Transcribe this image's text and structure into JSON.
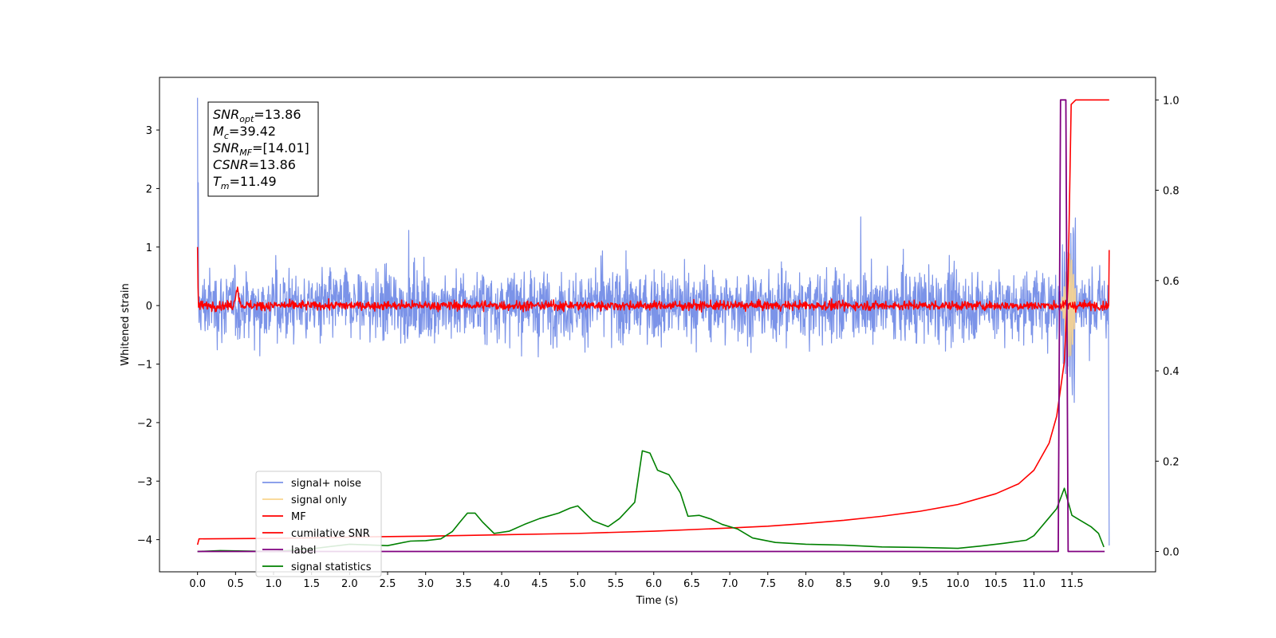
{
  "chart_data": {
    "type": "line",
    "xlabel": "Time (s)",
    "ylabel": "Whitened strain",
    "xlim": [
      -0.5,
      12.6
    ],
    "ylim": [
      -4.55,
      3.9
    ],
    "y2lim": [
      -0.045,
      1.05
    ],
    "xticks": [
      "0.0",
      "0.5",
      "1.0",
      "1.5",
      "2.0",
      "2.5",
      "3.0",
      "3.5",
      "4.0",
      "4.5",
      "5.0",
      "5.5",
      "6.0",
      "6.5",
      "7.0",
      "7.5",
      "8.0",
      "8.5",
      "9.0",
      "9.5",
      "10.0",
      "10.5",
      "11.0",
      "11.5"
    ],
    "yticks": [
      "3",
      "2",
      "1",
      "0",
      "−1",
      "−2",
      "−3",
      "−4"
    ],
    "y2ticks": [
      "1.0",
      "0.8",
      "0.6",
      "0.4",
      "0.2",
      "0.0"
    ],
    "annotation": {
      "lines": [
        {
          "name": "SNR",
          "sub": "opt",
          "value": "=13.86"
        },
        {
          "name": "M",
          "sub": "c",
          "value": "=39.42"
        },
        {
          "name": "SNR",
          "sub": "MF",
          "value": "=[14.01]"
        },
        {
          "name": "CSNR",
          "sub": "",
          "value": "=13.86"
        },
        {
          "name": "T",
          "sub": "m",
          "value": "=11.49"
        }
      ]
    },
    "legend": {
      "placement": "lower-left",
      "entries": [
        {
          "label": "signal+ noise",
          "color": "#7b93e8"
        },
        {
          "label": "signal only",
          "color": "#f9d58e"
        },
        {
          "label": "MF",
          "color": "#ff0000"
        },
        {
          "label": "cumilative SNR",
          "color": "#ff0000"
        },
        {
          "label": "label",
          "color": "#800080"
        },
        {
          "label": "signal statistics",
          "color": "#008000"
        }
      ]
    },
    "series": [
      {
        "name": "signal+ noise",
        "axis": "left",
        "color": "#7b93e8",
        "noise_amplitude": 1.0,
        "x_range": [
          0.0,
          11.99
        ]
      },
      {
        "name": "signal only",
        "axis": "left",
        "color": "#f9d58e",
        "x_range": [
          11.2,
          11.55
        ],
        "peak": 0.9
      },
      {
        "name": "MF",
        "axis": "left",
        "color": "#ff0000",
        "noise_amplitude": 0.15,
        "x_range": [
          0.0,
          11.99
        ]
      },
      {
        "name": "cumilative SNR",
        "axis": "right",
        "x": [
          0.0,
          0.02,
          1.0,
          2.0,
          3.0,
          4.0,
          5.0,
          6.0,
          7.0,
          7.5,
          8.0,
          8.5,
          9.0,
          9.5,
          10.0,
          10.5,
          10.8,
          11.0,
          11.2,
          11.3,
          11.4,
          11.45,
          11.49,
          11.55,
          11.99
        ],
        "y": [
          0.015,
          0.028,
          0.029,
          0.032,
          0.034,
          0.037,
          0.04,
          0.045,
          0.052,
          0.056,
          0.062,
          0.069,
          0.078,
          0.089,
          0.104,
          0.128,
          0.15,
          0.18,
          0.24,
          0.3,
          0.42,
          0.6,
          0.99,
          1.0,
          1.0
        ]
      },
      {
        "name": "label",
        "axis": "right",
        "color": "#800080",
        "x": [
          0.0,
          11.32,
          11.35,
          11.42,
          11.45,
          11.93
        ],
        "y": [
          0.0,
          0.0,
          1.0,
          1.0,
          0.0,
          0.0
        ]
      },
      {
        "name": "signal statistics",
        "axis": "right",
        "color": "#008000",
        "x": [
          0.0,
          0.3,
          1.0,
          1.5,
          2.0,
          2.5,
          2.8,
          3.0,
          3.2,
          3.35,
          3.45,
          3.55,
          3.65,
          3.75,
          3.9,
          4.1,
          4.3,
          4.5,
          4.75,
          4.9,
          5.0,
          5.2,
          5.4,
          5.55,
          5.75,
          5.85,
          5.95,
          6.05,
          6.2,
          6.35,
          6.45,
          6.6,
          6.75,
          6.9,
          7.1,
          7.3,
          7.6,
          8.0,
          8.5,
          9.0,
          9.5,
          10.0,
          10.3,
          10.6,
          10.9,
          11.0,
          11.1,
          11.2,
          11.3,
          11.4,
          11.5,
          11.6,
          11.75,
          11.85,
          11.92
        ],
        "y": [
          0.0,
          0.002,
          0.0,
          0.006,
          0.016,
          0.013,
          0.023,
          0.024,
          0.028,
          0.044,
          0.065,
          0.085,
          0.085,
          0.065,
          0.04,
          0.045,
          0.06,
          0.073,
          0.085,
          0.096,
          0.101,
          0.068,
          0.055,
          0.073,
          0.109,
          0.223,
          0.218,
          0.18,
          0.17,
          0.13,
          0.078,
          0.08,
          0.072,
          0.06,
          0.05,
          0.03,
          0.02,
          0.016,
          0.014,
          0.01,
          0.009,
          0.007,
          0.012,
          0.018,
          0.025,
          0.035,
          0.055,
          0.075,
          0.095,
          0.14,
          0.08,
          0.07,
          0.055,
          0.04,
          0.01
        ]
      }
    ]
  }
}
